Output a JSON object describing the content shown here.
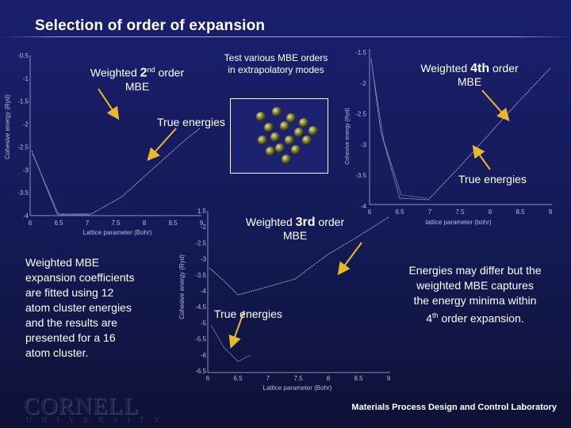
{
  "slide_title": "Selection of order of expansion",
  "labels": {
    "second_order": {
      "prefix": "Weighted ",
      "order": "2",
      "sup": "nd",
      "suffix": " order",
      "line2": "MBE"
    },
    "fourth_order": {
      "prefix": "Weighted ",
      "order": "4th",
      "suffix": " order",
      "line2": "MBE"
    },
    "third_order": {
      "prefix": "Weighted ",
      "order": "3rd",
      "suffix": " order",
      "line2": "MBE"
    },
    "test_orders": [
      "Test various MBE orders",
      "in extrapolatory modes"
    ],
    "true_energies_1": "True energies",
    "true_energies_2": "True energies",
    "true_energies_3": "True energies"
  },
  "left_text": [
    "Weighted MBE",
    "expansion coefficients",
    "are fitted using 12",
    "atom cluster energies",
    "and the results are",
    "presented for a 16",
    "atom cluster."
  ],
  "right_text": {
    "lines": [
      "Energies may differ but the",
      "weighted MBE captures",
      "the energy minima within"
    ],
    "last_prefix": "4",
    "last_sup": "th",
    "last_suffix": " order expansion."
  },
  "footer": "Materials Process Design and Control Laboratory",
  "logo": {
    "word": "CORNELL",
    "sub": "UNIVERSITY"
  },
  "plots": {
    "plot1": {
      "ylabel": "Cohesive energy (Ryd)",
      "xlabel": "Lattice parameter (Bohr)",
      "yticks": [
        "-0.5",
        "-1",
        "-1.5",
        "-2",
        "-2.5",
        "-3",
        "-3.5",
        "-4"
      ],
      "xticks": [
        "6",
        "6.5",
        "7",
        "7.5",
        "8",
        "8.5",
        "9"
      ]
    },
    "plot2": {
      "ylabel": "Cohesive energy (Ryd)",
      "xlabel": "lattice parameter (bohr)",
      "yticks": [
        "-1.5",
        "-2",
        "-2.5",
        "-3",
        "-3.5",
        "-4"
      ],
      "xticks": [
        "6",
        "6.5",
        "7",
        "7.5",
        "8",
        "8.5",
        "9"
      ]
    },
    "plot3": {
      "ylabel": "Cohesive energy (Ryd)",
      "xlabel": "Lattice parameter (Bohr)",
      "yticks": [
        "1.5",
        "-2",
        "-2.5",
        "-3",
        "-3.5",
        "-4",
        "-4.5",
        "-5",
        "-5.5",
        "-6",
        "-6.5"
      ],
      "xticks": [
        "6",
        "6.5",
        "7",
        "7.5",
        "8",
        "8.5",
        "9"
      ]
    }
  },
  "colors": {
    "background": "#1a1f6e",
    "arrow": "#e8b830",
    "text": "#ffffff",
    "curve": "#c8c8e0"
  }
}
